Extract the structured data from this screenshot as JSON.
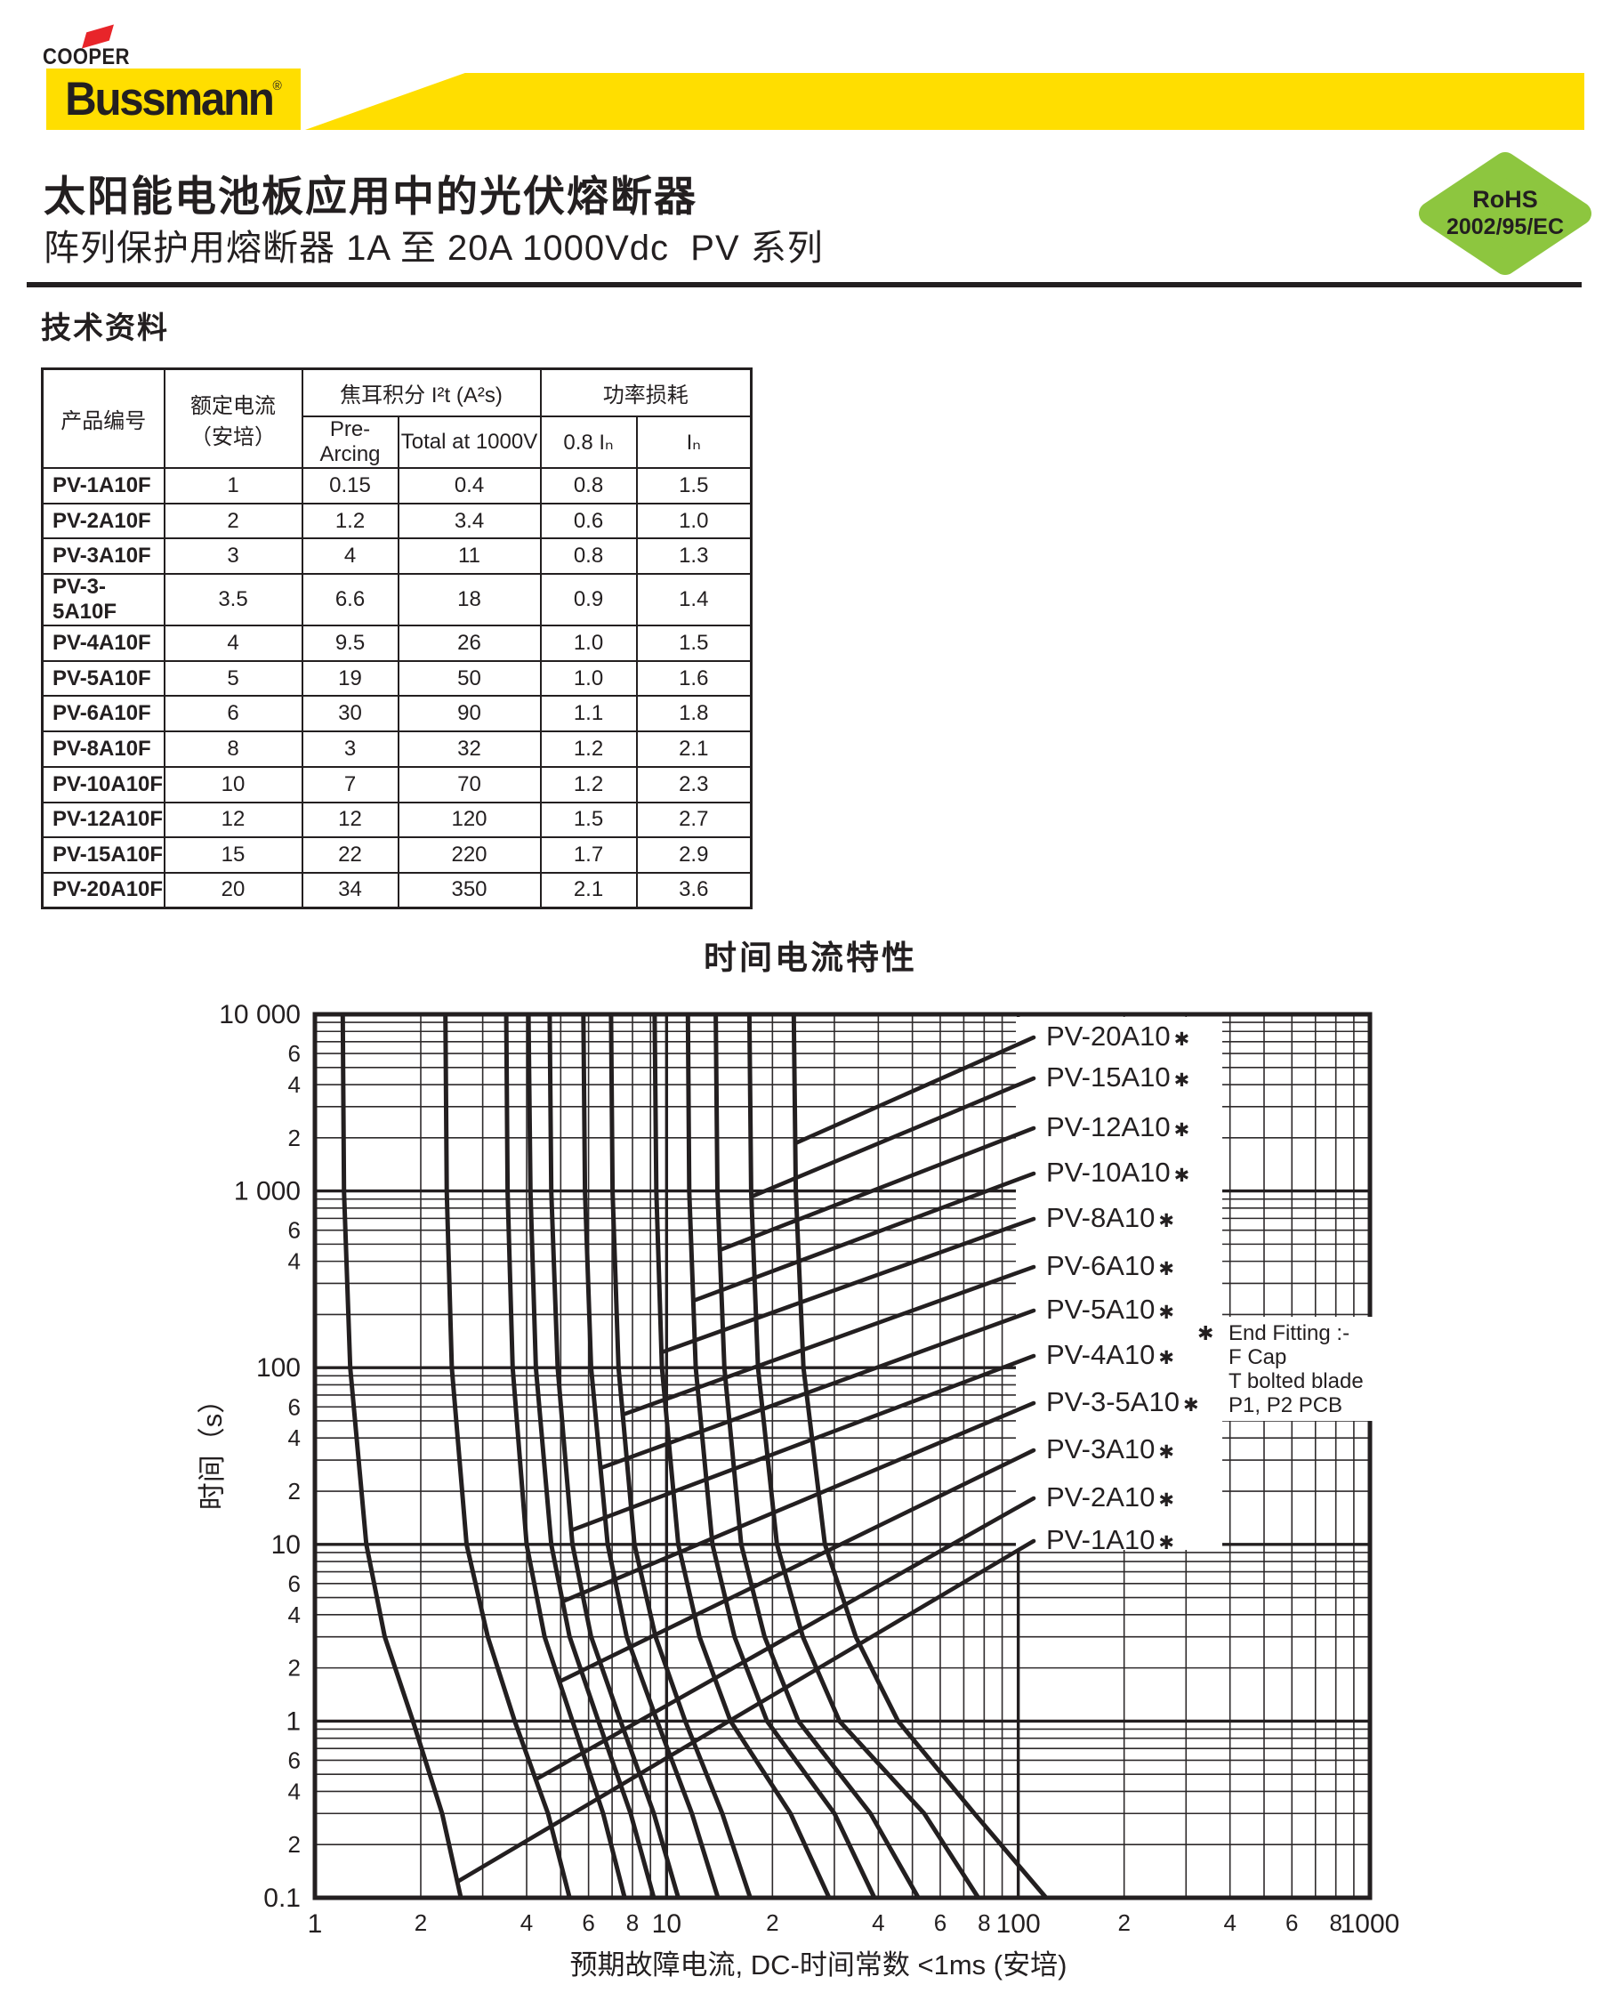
{
  "header": {
    "brand_top": "COOPER",
    "brand_main": "Bussmann",
    "brand_reg": "®",
    "title": "太阳能电池板应用中的光伏熔断器",
    "subtitle": "阵列保护用熔断器 1A 至 20A 1000Vdc  PV 系列",
    "rohs_line1": "RoHS",
    "rohs_line2": "2002/95/EC",
    "rohs_color": "#8DC63F",
    "brand_yellow": "#FFDE00",
    "brand_red": "#E8252A",
    "ink_color": "#231F20"
  },
  "section_title": "技术资料",
  "table": {
    "col_product": "产品编号",
    "col_rated_line1": "额定电流",
    "col_rated_line2": "（安培）",
    "col_joule": "焦耳积分 I²t (A²s)",
    "col_power": "功率损耗",
    "sub_prearcing": "Pre-Arcing",
    "sub_total": "Total at 1000V",
    "sub_08in": "0.8 Iₙ",
    "sub_in": "Iₙ",
    "rows": [
      [
        "PV-1A10F",
        "1",
        "0.15",
        "0.4",
        "0.8",
        "1.5"
      ],
      [
        "PV-2A10F",
        "2",
        "1.2",
        "3.4",
        "0.6",
        "1.0"
      ],
      [
        "PV-3A10F",
        "3",
        "4",
        "11",
        "0.8",
        "1.3"
      ],
      [
        "PV-3-5A10F",
        "3.5",
        "6.6",
        "18",
        "0.9",
        "1.4"
      ],
      [
        "PV-4A10F",
        "4",
        "9.5",
        "26",
        "1.0",
        "1.5"
      ],
      [
        "PV-5A10F",
        "5",
        "19",
        "50",
        "1.0",
        "1.6"
      ],
      [
        "PV-6A10F",
        "6",
        "30",
        "90",
        "1.1",
        "1.8"
      ],
      [
        "PV-8A10F",
        "8",
        "3",
        "32",
        "1.2",
        "2.1"
      ],
      [
        "PV-10A10F",
        "10",
        "7",
        "70",
        "1.2",
        "2.3"
      ],
      [
        "PV-12A10F",
        "12",
        "12",
        "120",
        "1.5",
        "2.7"
      ],
      [
        "PV-15A10F",
        "15",
        "22",
        "220",
        "1.7",
        "2.9"
      ],
      [
        "PV-20A10F",
        "20",
        "34",
        "350",
        "2.1",
        "3.6"
      ]
    ]
  },
  "chart_data": {
    "type": "line",
    "title": "时间电流特性",
    "xlabel": "预期故障电流, DC-时间常数 <1ms (安培)",
    "ylabel": "时间（s）",
    "x_scale": "log",
    "y_scale": "log",
    "xlim": [
      1,
      1000
    ],
    "ylim": [
      0.1,
      10000
    ],
    "grid": true,
    "x_major_values": [
      1,
      10,
      100,
      1000
    ],
    "x_major_labels": [
      "1",
      "10",
      "100",
      "1000"
    ],
    "x_minor_labels": [
      "2",
      "4",
      "6",
      "8"
    ],
    "y_major_values": [
      10000,
      1000,
      100,
      10,
      1,
      0.1
    ],
    "y_major_labels": [
      "10 000",
      "1 000",
      "100",
      "10",
      "1",
      "0.1"
    ],
    "y_minor_labels_per_decade": [
      [
        "6",
        "4",
        "2"
      ],
      [
        "6",
        "4"
      ],
      [
        "6",
        "4",
        "2"
      ],
      [
        "6",
        "4",
        "2"
      ],
      [
        "6",
        "4",
        "2"
      ]
    ],
    "legend_marker": "✱",
    "note_lines": [
      "End Fitting :-",
      "F Cap",
      "T bolted blade",
      "P1, P2 PCB"
    ],
    "t_values_s": [
      10000,
      1000,
      100,
      10,
      3,
      1,
      0.3,
      0.1
    ],
    "series": [
      {
        "label": "PV-20A10",
        "amps": [
          23.0,
          23.3,
          24.5,
          28.2,
          34.5,
          45.5,
          75.0,
          120.0
        ]
      },
      {
        "label": "PV-15A10",
        "amps": [
          17.2,
          17.4,
          18.2,
          20.6,
          24.4,
          31.0,
          54.0,
          77.0
        ]
      },
      {
        "label": "PV-12A10",
        "amps": [
          13.8,
          13.95,
          14.6,
          16.3,
          19.0,
          23.7,
          38.0,
          52.0
        ]
      },
      {
        "label": "PV-10A10",
        "amps": [
          11.5,
          11.6,
          12.1,
          13.5,
          15.6,
          19.3,
          30.0,
          39.0
        ]
      },
      {
        "label": "PV-8A10",
        "amps": [
          9.25,
          9.35,
          9.7,
          10.8,
          12.4,
          15.2,
          22.5,
          29.0
        ]
      },
      {
        "label": "PV-6A10",
        "amps": [
          6.95,
          7.02,
          7.3,
          8.1,
          9.3,
          11.3,
          14.4,
          17.3
        ]
      },
      {
        "label": "PV-5A10",
        "amps": [
          5.8,
          5.86,
          6.1,
          6.8,
          7.7,
          9.4,
          11.8,
          14.0
        ]
      },
      {
        "label": "PV-4A10",
        "amps": [
          4.65,
          4.7,
          4.9,
          5.4,
          6.1,
          7.4,
          9.2,
          10.8
        ]
      },
      {
        "label": "PV-3-5A10",
        "amps": [
          4.05,
          4.1,
          4.25,
          4.7,
          5.3,
          6.4,
          7.9,
          9.2
        ]
      },
      {
        "label": "PV-3A10",
        "amps": [
          3.5,
          3.53,
          3.65,
          4.0,
          4.5,
          5.4,
          6.6,
          7.6
        ]
      },
      {
        "label": "PV-2A10",
        "amps": [
          2.35,
          2.37,
          2.45,
          2.7,
          3.1,
          3.7,
          4.6,
          5.3
        ]
      },
      {
        "label": "PV-1A10",
        "amps": [
          1.2,
          1.21,
          1.26,
          1.4,
          1.58,
          1.9,
          2.3,
          2.6
        ]
      }
    ]
  }
}
